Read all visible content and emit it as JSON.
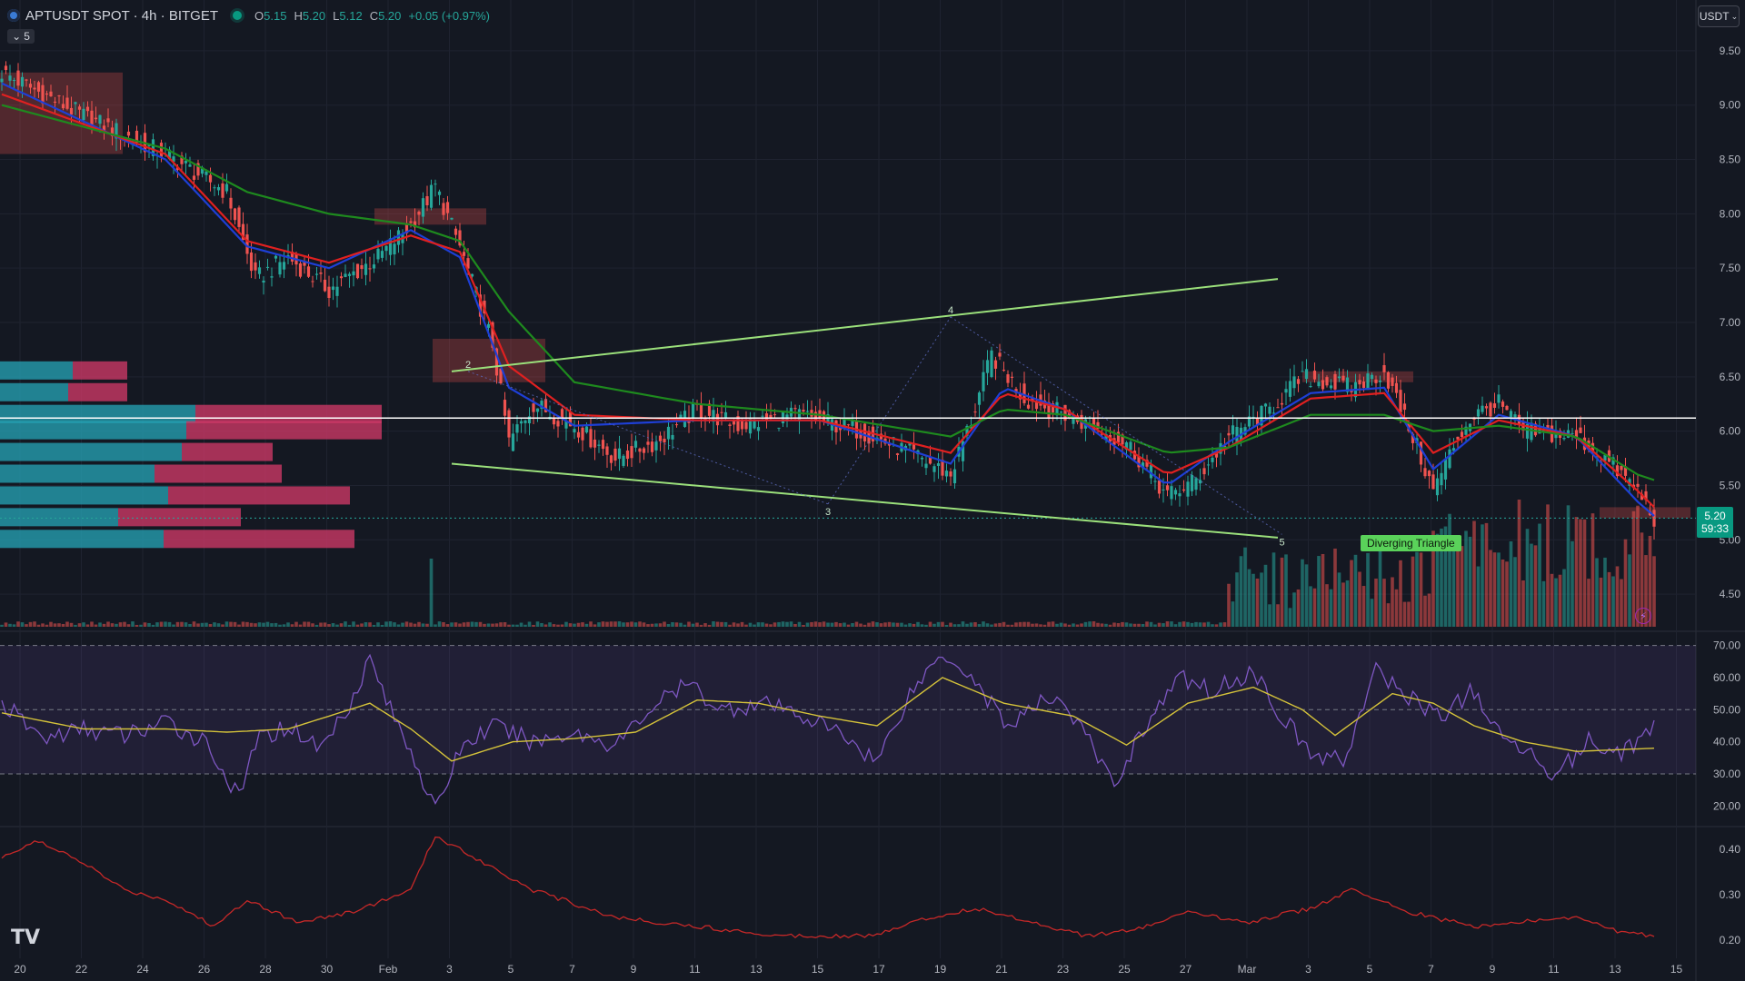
{
  "header": {
    "symbol": "APTUSDT SPOT · 4h · BITGET",
    "open_label": "O",
    "open": "5.15",
    "high_label": "H",
    "high": "5.20",
    "low_label": "L",
    "low": "5.12",
    "close_label": "C",
    "close": "5.20",
    "change": "+0.05 (+0.97%)",
    "indicator_count": "5",
    "currency": "USDT"
  },
  "price_tag": {
    "price": "5.20",
    "countdown": "59:33"
  },
  "pattern_label": "Diverging Triangle",
  "wave_labels": [
    "2",
    "3",
    "4",
    "5"
  ],
  "colors": {
    "background": "#141822",
    "up": "#26a69a",
    "down": "#ef5350",
    "ema_fast": "#1e3fd6",
    "ema_mid": "#e02020",
    "ema_slow": "#1e8a1e",
    "rsi": "#7e57c2",
    "rsi_ma": "#d4c23a",
    "bottom_line": "#c62828",
    "triangle": "#9be07b",
    "level_line": "#ffffff"
  },
  "icons": [
    "tradingview-logo-icon",
    "chevron-down-icon",
    "lightning-icon"
  ],
  "chart_data": [
    {
      "type": "candlestick",
      "title": "APTUSDT SPOT · 4h · BITGET",
      "x_tick_labels": [
        "20",
        "22",
        "24",
        "26",
        "28",
        "30",
        "Feb",
        "3",
        "5",
        "7",
        "9",
        "11",
        "13",
        "15",
        "17",
        "19",
        "21",
        "23",
        "25",
        "27",
        "Mar",
        "3",
        "5",
        "7",
        "9",
        "11",
        "13",
        "15"
      ],
      "y_ticks": [
        9.5,
        9.0,
        8.5,
        8.0,
        7.5,
        7.0,
        6.5,
        6.0,
        5.5,
        5.0,
        4.5
      ],
      "y_tick_labels": [
        "9.50",
        "9.00",
        "8.50",
        "8.00",
        "7.50",
        "7.00",
        "6.50",
        "6.00",
        "5.50",
        "5.00",
        "4.50"
      ],
      "ylim": [
        4.2,
        9.8
      ],
      "last_price": 5.2,
      "horizontal_level": 6.12,
      "close_path": [
        [
          0,
          9.3
        ],
        [
          20,
          8.9
        ],
        [
          40,
          8.55
        ],
        [
          55,
          8.2
        ],
        [
          62,
          7.4
        ],
        [
          70,
          7.6
        ],
        [
          80,
          7.3
        ],
        [
          92,
          7.6
        ],
        [
          100,
          7.9
        ],
        [
          106,
          8.25
        ],
        [
          112,
          7.7
        ],
        [
          120,
          6.8
        ],
        [
          124,
          5.9
        ],
        [
          130,
          6.25
        ],
        [
          140,
          6.05
        ],
        [
          150,
          5.75
        ],
        [
          160,
          5.9
        ],
        [
          170,
          6.2
        ],
        [
          180,
          6.05
        ],
        [
          195,
          6.15
        ],
        [
          210,
          6.0
        ],
        [
          222,
          5.8
        ],
        [
          232,
          5.6
        ],
        [
          237,
          6.1
        ],
        [
          242,
          6.7
        ],
        [
          250,
          6.3
        ],
        [
          260,
          6.15
        ],
        [
          275,
          5.9
        ],
        [
          285,
          5.4
        ],
        [
          292,
          5.55
        ],
        [
          300,
          5.95
        ],
        [
          310,
          6.2
        ],
        [
          318,
          6.5
        ],
        [
          330,
          6.4
        ],
        [
          338,
          6.55
        ],
        [
          345,
          5.95
        ],
        [
          350,
          5.45
        ],
        [
          356,
          5.95
        ],
        [
          360,
          6.15
        ],
        [
          366,
          6.25
        ],
        [
          372,
          6.0
        ],
        [
          385,
          5.95
        ],
        [
          392,
          5.75
        ],
        [
          400,
          5.45
        ],
        [
          404,
          5.2
        ]
      ],
      "series": [
        {
          "name": "",
          "role": "ema_fast",
          "values": [
            [
              0,
              9.2
            ],
            [
              40,
              8.5
            ],
            [
              60,
              7.7
            ],
            [
              80,
              7.5
            ],
            [
              100,
              7.85
            ],
            [
              112,
              7.6
            ],
            [
              124,
              6.4
            ],
            [
              140,
              6.05
            ],
            [
              170,
              6.1
            ],
            [
              200,
              6.1
            ],
            [
              232,
              5.7
            ],
            [
              245,
              6.4
            ],
            [
              260,
              6.2
            ],
            [
              285,
              5.5
            ],
            [
              300,
              5.9
            ],
            [
              320,
              6.35
            ],
            [
              338,
              6.4
            ],
            [
              350,
              5.65
            ],
            [
              366,
              6.15
            ],
            [
              385,
              5.95
            ],
            [
              400,
              5.35
            ],
            [
              404,
              5.22
            ]
          ]
        },
        {
          "name": "",
          "role": "ema_mid",
          "values": [
            [
              0,
              9.1
            ],
            [
              40,
              8.55
            ],
            [
              60,
              7.75
            ],
            [
              80,
              7.55
            ],
            [
              100,
              7.8
            ],
            [
              112,
              7.65
            ],
            [
              124,
              6.6
            ],
            [
              140,
              6.15
            ],
            [
              170,
              6.1
            ],
            [
              200,
              6.1
            ],
            [
              232,
              5.8
            ],
            [
              245,
              6.35
            ],
            [
              260,
              6.2
            ],
            [
              285,
              5.6
            ],
            [
              300,
              5.85
            ],
            [
              320,
              6.3
            ],
            [
              338,
              6.35
            ],
            [
              350,
              5.8
            ],
            [
              366,
              6.1
            ],
            [
              385,
              5.95
            ],
            [
              400,
              5.45
            ],
            [
              404,
              5.3
            ]
          ]
        },
        {
          "name": "",
          "role": "ema_slow",
          "values": [
            [
              0,
              9.0
            ],
            [
              40,
              8.6
            ],
            [
              60,
              8.2
            ],
            [
              80,
              8.0
            ],
            [
              100,
              7.9
            ],
            [
              112,
              7.75
            ],
            [
              124,
              7.1
            ],
            [
              140,
              6.45
            ],
            [
              170,
              6.25
            ],
            [
              200,
              6.15
            ],
            [
              232,
              5.95
            ],
            [
              245,
              6.2
            ],
            [
              260,
              6.15
            ],
            [
              285,
              5.8
            ],
            [
              300,
              5.85
            ],
            [
              320,
              6.15
            ],
            [
              338,
              6.15
            ],
            [
              350,
              6.0
            ],
            [
              366,
              6.05
            ],
            [
              385,
              5.95
            ],
            [
              400,
              5.6
            ],
            [
              404,
              5.55
            ]
          ]
        }
      ],
      "pattern": {
        "name": "Diverging Triangle",
        "upper_line": [
          [
            110,
            6.55
          ],
          [
            312,
            7.4
          ]
        ],
        "lower_line": [
          [
            110,
            5.7
          ],
          [
            312,
            5.02
          ]
        ],
        "wave_points": [
          {
            "label": "2",
            "x": 114,
            "y": 6.55
          },
          {
            "label": "3",
            "x": 202,
            "y": 5.33
          },
          {
            "label": "4",
            "x": 232,
            "y": 7.05
          },
          {
            "label": "5",
            "x": 313,
            "y": 5.05
          }
        ]
      }
    },
    {
      "type": "line",
      "title": "",
      "y_tick_labels": [
        "70.00",
        "60.00",
        "50.00",
        "40.00",
        "30.00",
        "20.00"
      ],
      "ylim": [
        15,
        73
      ],
      "bands": [
        30,
        50,
        70
      ],
      "series": [
        {
          "name": "",
          "role": "rsi",
          "values": [
            [
              0,
              52
            ],
            [
              10,
              41
            ],
            [
              20,
              44
            ],
            [
              30,
              42
            ],
            [
              40,
              46
            ],
            [
              50,
              40
            ],
            [
              58,
              22
            ],
            [
              62,
              40
            ],
            [
              70,
              45
            ],
            [
              78,
              38
            ],
            [
              85,
              52
            ],
            [
              90,
              66
            ],
            [
              96,
              47
            ],
            [
              100,
              38
            ],
            [
              106,
              18
            ],
            [
              112,
              38
            ],
            [
              120,
              45
            ],
            [
              130,
              40
            ],
            [
              140,
              43
            ],
            [
              150,
              39
            ],
            [
              160,
              52
            ],
            [
              168,
              58
            ],
            [
              176,
              50
            ],
            [
              186,
              52
            ],
            [
              196,
              48
            ],
            [
              206,
              42
            ],
            [
              214,
              34
            ],
            [
              222,
              55
            ],
            [
              230,
              68
            ],
            [
              236,
              62
            ],
            [
              246,
              45
            ],
            [
              258,
              55
            ],
            [
              266,
              40
            ],
            [
              272,
              26
            ],
            [
              278,
              42
            ],
            [
              288,
              60
            ],
            [
              296,
              56
            ],
            [
              306,
              62
            ],
            [
              312,
              50
            ],
            [
              320,
              36
            ],
            [
              328,
              34
            ],
            [
              336,
              62
            ],
            [
              344,
              54
            ],
            [
              352,
              48
            ],
            [
              360,
              56
            ],
            [
              366,
              42
            ],
            [
              372,
              38
            ],
            [
              380,
              30
            ],
            [
              388,
              40
            ],
            [
              396,
              37
            ],
            [
              404,
              44
            ]
          ]
        },
        {
          "name": "",
          "role": "rsi_ma",
          "values": [
            [
              0,
              49
            ],
            [
              20,
              44
            ],
            [
              40,
              44
            ],
            [
              55,
              43
            ],
            [
              70,
              44
            ],
            [
              90,
              52
            ],
            [
              100,
              44
            ],
            [
              110,
              34
            ],
            [
              125,
              40
            ],
            [
              140,
              41
            ],
            [
              155,
              43
            ],
            [
              170,
              53
            ],
            [
              185,
              52
            ],
            [
              200,
              48
            ],
            [
              214,
              45
            ],
            [
              230,
              60
            ],
            [
              245,
              52
            ],
            [
              262,
              48
            ],
            [
              275,
              39
            ],
            [
              290,
              52
            ],
            [
              306,
              57
            ],
            [
              318,
              50
            ],
            [
              326,
              42
            ],
            [
              340,
              55
            ],
            [
              350,
              52
            ],
            [
              360,
              45
            ],
            [
              372,
              40
            ],
            [
              385,
              37
            ],
            [
              404,
              38
            ]
          ]
        }
      ]
    },
    {
      "type": "line",
      "title": "",
      "y_tick_labels": [
        "0.40",
        "0.30",
        "0.20"
      ],
      "ylim": [
        0.16,
        0.44
      ],
      "series": [
        {
          "name": "",
          "role": "bottom_line",
          "values": [
            [
              0,
              0.38
            ],
            [
              8,
              0.42
            ],
            [
              20,
              0.37
            ],
            [
              30,
              0.31
            ],
            [
              40,
              0.29
            ],
            [
              52,
              0.23
            ],
            [
              60,
              0.29
            ],
            [
              72,
              0.24
            ],
            [
              85,
              0.26
            ],
            [
              100,
              0.31
            ],
            [
              106,
              0.43
            ],
            [
              116,
              0.38
            ],
            [
              130,
              0.31
            ],
            [
              150,
              0.25
            ],
            [
              170,
              0.23
            ],
            [
              190,
              0.21
            ],
            [
              214,
              0.21
            ],
            [
              222,
              0.24
            ],
            [
              238,
              0.27
            ],
            [
              252,
              0.24
            ],
            [
              265,
              0.21
            ],
            [
              276,
              0.22
            ],
            [
              290,
              0.26
            ],
            [
              305,
              0.24
            ],
            [
              320,
              0.27
            ],
            [
              330,
              0.31
            ],
            [
              345,
              0.26
            ],
            [
              360,
              0.23
            ],
            [
              372,
              0.24
            ],
            [
              385,
              0.25
            ],
            [
              395,
              0.22
            ],
            [
              404,
              0.21
            ]
          ]
        }
      ]
    }
  ]
}
